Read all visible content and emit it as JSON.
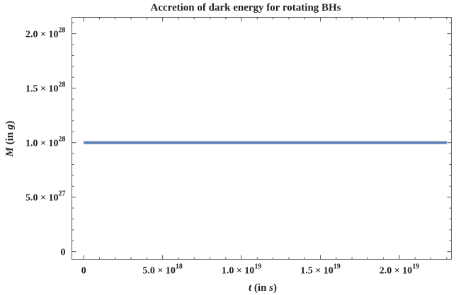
{
  "chart_data": {
    "type": "line",
    "title": "Accretion of dark energy for rotating BHs",
    "xlabel": {
      "var": "t",
      "rest": " (in ",
      "unit": "s",
      "close": ")"
    },
    "ylabel": {
      "var": "M",
      "rest": " (in ",
      "unit": "g",
      "close": ")"
    },
    "xlim": [
      -7.5e+17,
      2.33e+19
    ],
    "ylim": [
      -7e+26,
      2.15e+28
    ],
    "x_ticks": [
      {
        "value": 0,
        "mantissa": "0",
        "exponent": ""
      },
      {
        "value": 5e+18,
        "mantissa": "5.0 × 10",
        "exponent": "18"
      },
      {
        "value": 1e+19,
        "mantissa": "1.0 × 10",
        "exponent": "19"
      },
      {
        "value": 1.5e+19,
        "mantissa": "1.5 × 10",
        "exponent": "19"
      },
      {
        "value": 2e+19,
        "mantissa": "2.0 × 10",
        "exponent": "19"
      }
    ],
    "y_ticks": [
      {
        "value": 0,
        "mantissa": "0",
        "exponent": ""
      },
      {
        "value": 5e+27,
        "mantissa": "5.0 × 10",
        "exponent": "27"
      },
      {
        "value": 1e+28,
        "mantissa": "1.0 × 10",
        "exponent": "28"
      },
      {
        "value": 1.5e+28,
        "mantissa": "1.5 × 10",
        "exponent": "28"
      },
      {
        "value": 2e+28,
        "mantissa": "2.0 × 10",
        "exponent": "28"
      }
    ],
    "x_minor_step": 1e+18,
    "y_minor_step": 1e+27,
    "series": [
      {
        "x": [
          0,
          2.3e+19
        ],
        "y": [
          1e+28,
          1e+28
        ],
        "color": "#5E81B5"
      }
    ],
    "grid": false,
    "legend": "none"
  }
}
